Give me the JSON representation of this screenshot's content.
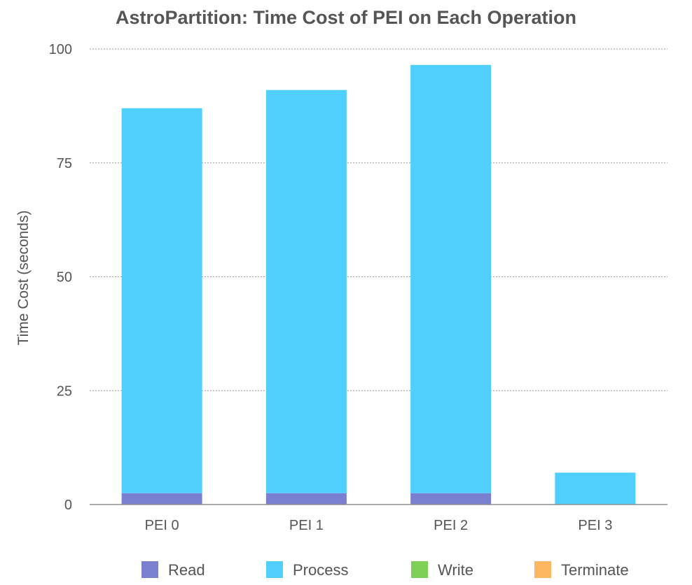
{
  "chart_data": {
    "type": "bar",
    "stacked": true,
    "title": "AstroPartition: Time Cost of PEI on Each Operation",
    "xlabel": "",
    "ylabel": "Time Cost (seconds)",
    "ylim": [
      0,
      100
    ],
    "yticks": [
      0,
      25,
      50,
      75,
      100
    ],
    "grid": true,
    "legend_position": "bottom",
    "categories": [
      "PEI 0",
      "PEI 1",
      "PEI 2",
      "PEI 3"
    ],
    "series": [
      {
        "name": "Read",
        "color": "#7b7fd0",
        "values": [
          2.5,
          2.5,
          2.5,
          0
        ]
      },
      {
        "name": "Process",
        "color": "#50cefc",
        "values": [
          84.5,
          88.5,
          94,
          7
        ]
      },
      {
        "name": "Write",
        "color": "#7ed057",
        "values": [
          0,
          0,
          0,
          0
        ]
      },
      {
        "name": "Terminate",
        "color": "#ffb661",
        "values": [
          0,
          0,
          0,
          0
        ]
      }
    ]
  }
}
